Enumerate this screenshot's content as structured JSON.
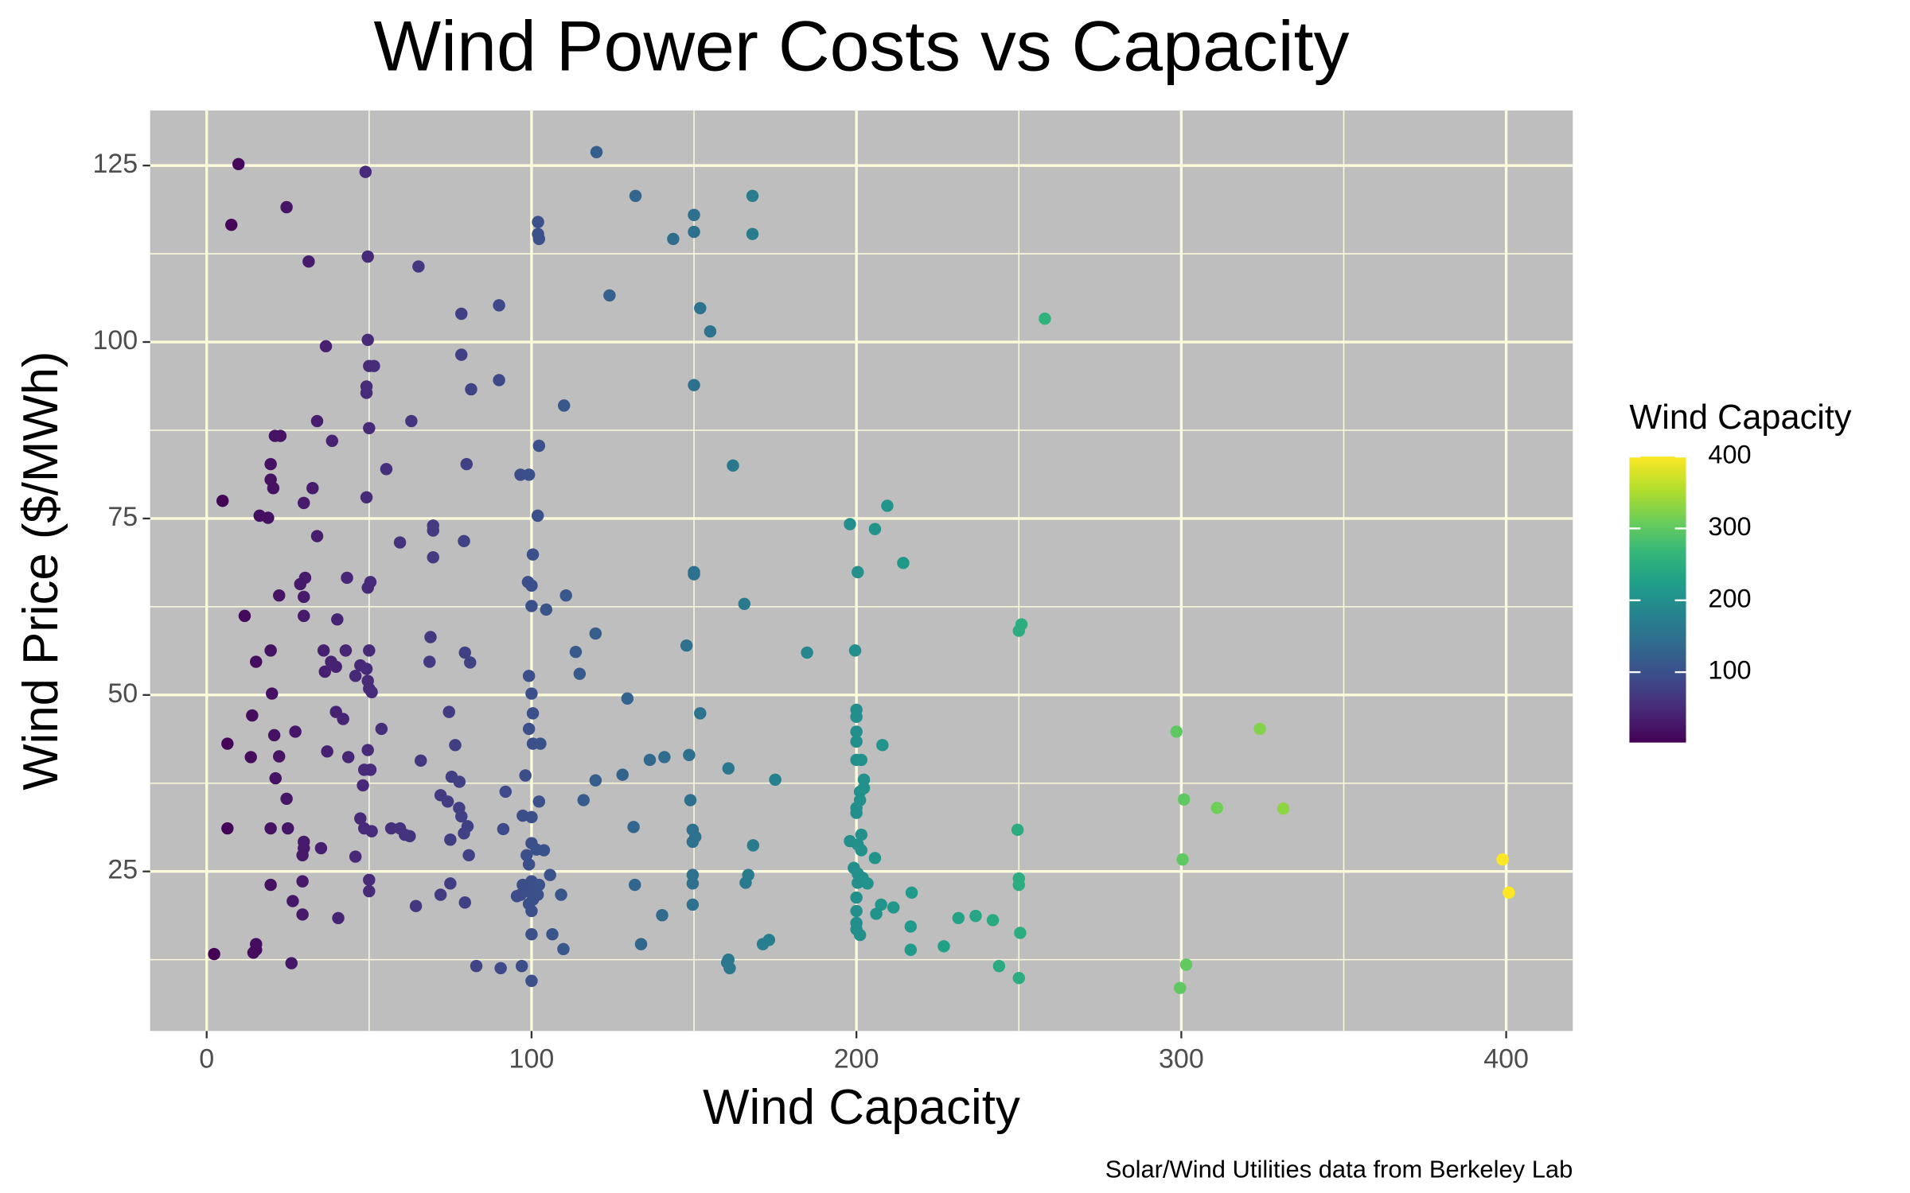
{
  "chart_data": {
    "type": "scatter",
    "title": "Wind Power Costs vs Capacity",
    "x_label": "Wind Capacity",
    "y_label": "Wind Price ($/MWh)",
    "caption": "Solar/Wind Utilities data from Berkeley Lab",
    "xlim": [
      -17.4,
      420.5
    ],
    "ylim": [
      2.4,
      132.8
    ],
    "xticks": [
      0,
      100,
      200,
      300,
      400
    ],
    "yticks": [
      25,
      50,
      75,
      100,
      125
    ],
    "x_minor_ticks": [
      50,
      150,
      250,
      350
    ],
    "y_minor_ticks": [
      12.5,
      37.5,
      62.5,
      87.5,
      112.5
    ],
    "grid": true,
    "background": "#bebebe",
    "grid_color": "#fbfbdc",
    "color_scale": {
      "title": "Wind Capacity",
      "lim": [
        2,
        400
      ],
      "ticks": [
        100,
        200,
        300,
        400
      ],
      "colors": [
        "#440154",
        "#482878",
        "#3e4989",
        "#31688e",
        "#26828e",
        "#1f9e89",
        "#35b779",
        "#6ece58",
        "#b5de2b",
        "#fde725"
      ]
    },
    "x": [
      9.8,
      7.6,
      24.6,
      48.9,
      31.4,
      49.6,
      65.2,
      120,
      132,
      150,
      168,
      150,
      168,
      102,
      102,
      102.3,
      143.6,
      124,
      90,
      151.9,
      155,
      78.4,
      258,
      49.6,
      36.7,
      50,
      51.5,
      78.4,
      90,
      81.4,
      150,
      49.2,
      49.2,
      110,
      34,
      63,
      50,
      21,
      22.7,
      38.6,
      102.3,
      55.3,
      19.7,
      80,
      162,
      96.6,
      99.2,
      19.7,
      20.5,
      32.6,
      4.9,
      29.9,
      49.2,
      209.5,
      16.3,
      18.9,
      101.9,
      198,
      205.7,
      69.7,
      69.7,
      34,
      59.5,
      79.2,
      69.7,
      100.4,
      214.4,
      200.4,
      150,
      150,
      43.2,
      30.3,
      28.8,
      50.4,
      49.6,
      98.9,
      100,
      22.3,
      29.9,
      110.6,
      165.5,
      100,
      104.5,
      11.7,
      29.9,
      40.2,
      250.8,
      250,
      119.7,
      68.9,
      147.7,
      19.7,
      36,
      42.8,
      50,
      79.5,
      113.6,
      184.8,
      199.6,
      15.2,
      38.3,
      81.1,
      47.3,
      49.2,
      36.4,
      39.8,
      68.6,
      114.8,
      99.2,
      49.6,
      50,
      50.8,
      45.8,
      20.1,
      100,
      129.5,
      100.4,
      151.9,
      14,
      74.6,
      39.8,
      42,
      200,
      200,
      53.8,
      99.2,
      27.3,
      20.8,
      298.5,
      324.2,
      200,
      200,
      6.4,
      76.5,
      100.4,
      102.7,
      208,
      49.6,
      37.1,
      22.3,
      13.6,
      43.6,
      136.4,
      140.9,
      148.5,
      200,
      201.5,
      65.9,
      48.5,
      50.4,
      160.6,
      128,
      98.1,
      75.4,
      21.2,
      77.8,
      119.7,
      175,
      202.3,
      202.3,
      48.1,
      201.1,
      201.1,
      92,
      116,
      102.3,
      148.9,
      24.6,
      300.8,
      72,
      74.2,
      200,
      200,
      311,
      331.4,
      77.7,
      78.4,
      47.3,
      100,
      97.3,
      6.4,
      19.7,
      25,
      48.5,
      50.8,
      56.8,
      59.5,
      61,
      62.5,
      80.3,
      79.2,
      75,
      91.3,
      131.4,
      149.6,
      150.4,
      149.6,
      249.6,
      198,
      200.4,
      201.5,
      201.5,
      29.9,
      29.9,
      35.2,
      168.2,
      100,
      101.5,
      103.8,
      98.5,
      99.2,
      300.4,
      398.9,
      205.7,
      29.5,
      45.8,
      80.7,
      199.2,
      200.4,
      200.4,
      201.9,
      203.4,
      105.7,
      149.6,
      149.6,
      166.7,
      165.9,
      50,
      50,
      29.5,
      19.7,
      75,
      131.8,
      250,
      250,
      100,
      97.7,
      101,
      72,
      109.1,
      400.8,
      217,
      96.6,
      101.9,
      100.4,
      99.2,
      100,
      99.2,
      102.3,
      98.5,
      95.5,
      97.3,
      26.5,
      149.6,
      200,
      200,
      200,
      207.6,
      206.1,
      211.4,
      64.4,
      79.5,
      29.5,
      40.5,
      140.2,
      231.4,
      236.7,
      242,
      216.7,
      200,
      201.1,
      106.4,
      100,
      250.4,
      133.7,
      171.2,
      173.1,
      15.2,
      15.2,
      14.4,
      109.8,
      2.3,
      216.7,
      226.9,
      160.2,
      161,
      160.6,
      26.1,
      83,
      90.5,
      97,
      301.5,
      243.9,
      250,
      100,
      299.6
    ],
    "y": [
      125.2,
      116.6,
      119.1,
      124.1,
      111.4,
      112.1,
      110.7,
      126.9,
      120.7,
      118,
      120.7,
      115.6,
      115.3,
      117,
      115.3,
      114.6,
      114.6,
      106.6,
      105.2,
      104.8,
      101.5,
      104,
      103.3,
      100.3,
      99.4,
      96.6,
      96.6,
      98.2,
      94.6,
      93.3,
      93.9,
      93.7,
      92.8,
      91,
      88.8,
      88.8,
      87.8,
      86.7,
      86.7,
      86,
      85.3,
      82,
      82.7,
      82.7,
      82.5,
      81.2,
      81.2,
      80.5,
      79.3,
      79.3,
      77.5,
      77.2,
      78,
      76.8,
      75.4,
      75.1,
      75.4,
      74.2,
      73.5,
      74,
      73.3,
      72.5,
      71.6,
      71.8,
      69.5,
      69.9,
      68.7,
      67.4,
      67.4,
      67.1,
      66.6,
      66.6,
      65.7,
      66,
      65.2,
      66,
      65.5,
      64.1,
      63.9,
      64.1,
      62.9,
      62.6,
      62.1,
      61.2,
      61.2,
      60.7,
      60,
      59.1,
      58.7,
      58.2,
      57,
      56.3,
      56.3,
      56.3,
      56.3,
      56,
      56.1,
      56,
      56.3,
      54.7,
      54.7,
      54.6,
      54.2,
      53.7,
      53.3,
      54,
      54.7,
      53,
      52.7,
      52,
      50.9,
      50.4,
      52.7,
      50.2,
      50.2,
      49.5,
      47.4,
      47.4,
      47.1,
      47.6,
      47.6,
      46.6,
      47.9,
      46.9,
      45.2,
      45.2,
      44.8,
      44.3,
      44.8,
      45.2,
      44.8,
      43.4,
      43.1,
      42.9,
      43.1,
      43.1,
      42.9,
      42.2,
      42,
      41.3,
      41.2,
      41.2,
      40.8,
      41.2,
      41.5,
      40.8,
      40.8,
      40.7,
      39.4,
      39.4,
      39.6,
      38.7,
      38.6,
      38.4,
      38.2,
      37.7,
      37.9,
      38,
      38,
      36.8,
      37.2,
      36.3,
      35.1,
      36.3,
      35.1,
      34.9,
      35.1,
      35.3,
      35.2,
      35.8,
      34.9,
      34,
      33.3,
      34,
      33.9,
      34,
      32.8,
      32.5,
      32.7,
      32.9,
      31.1,
      31.1,
      31.1,
      31.1,
      30.7,
      31.1,
      31.1,
      30.2,
      30,
      31.4,
      30.4,
      29.5,
      31,
      31.3,
      30.9,
      29.9,
      29.2,
      30.9,
      29.3,
      28.8,
      30.2,
      28,
      29.2,
      28.3,
      28.3,
      28.7,
      29,
      28.1,
      28,
      27.3,
      26,
      26.7,
      26.7,
      26.9,
      27.3,
      27.1,
      27.3,
      25.5,
      24.7,
      23.4,
      24.1,
      23.3,
      24.5,
      24.5,
      23.3,
      24.5,
      23.4,
      23.8,
      22.2,
      23.6,
      23.1,
      23.3,
      23.1,
      24,
      23.1,
      23.6,
      22.9,
      22.4,
      21.7,
      21.7,
      22,
      22,
      21.7,
      21.7,
      21,
      20.4,
      19.4,
      22.5,
      23.1,
      22.2,
      21.5,
      23.1,
      20.8,
      20.3,
      21.3,
      19.4,
      17.7,
      20.3,
      19,
      19.9,
      20.1,
      20.6,
      18.9,
      18.4,
      18.8,
      18.4,
      18.7,
      18.1,
      17.2,
      16.8,
      16,
      16.1,
      16.1,
      16.3,
      14.7,
      14.7,
      15.3,
      14.7,
      13.9,
      13.5,
      14,
      13.3,
      13.9,
      14.4,
      12.1,
      11.3,
      12.5,
      12,
      11.6,
      11.3,
      11.6,
      11.8,
      11.6,
      9.9,
      9.5,
      8.5
    ]
  }
}
